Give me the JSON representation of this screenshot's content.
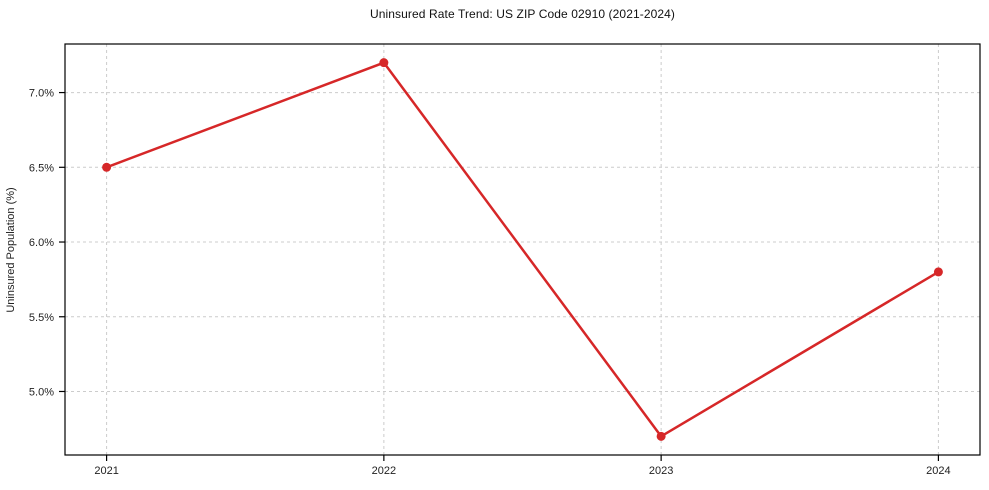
{
  "chart_data": {
    "type": "line",
    "title": "Uninsured Rate Trend: US ZIP Code 02910 (2021-2024)",
    "ylabel": "Uninsured Population (%)",
    "xlabel": "",
    "categories": [
      "2021",
      "2022",
      "2023",
      "2024"
    ],
    "x": [
      2021,
      2022,
      2023,
      2024
    ],
    "values": [
      6.5,
      7.2,
      4.7,
      5.8
    ],
    "yticks": {
      "values": [
        5.0,
        5.5,
        6.0,
        6.5,
        7.0
      ],
      "labels": [
        "5.0%",
        "5.5%",
        "6.0%",
        "6.5%",
        "7.0%"
      ]
    },
    "xlim": [
      2020.85,
      2024.15
    ],
    "ylim": [
      4.575,
      7.325
    ],
    "grid": "dashed",
    "legend": "none",
    "colors": {
      "line": "#d62728",
      "marker": "#d62728",
      "grid": "#cccccc",
      "border": "#000000",
      "text": "#222222"
    }
  }
}
